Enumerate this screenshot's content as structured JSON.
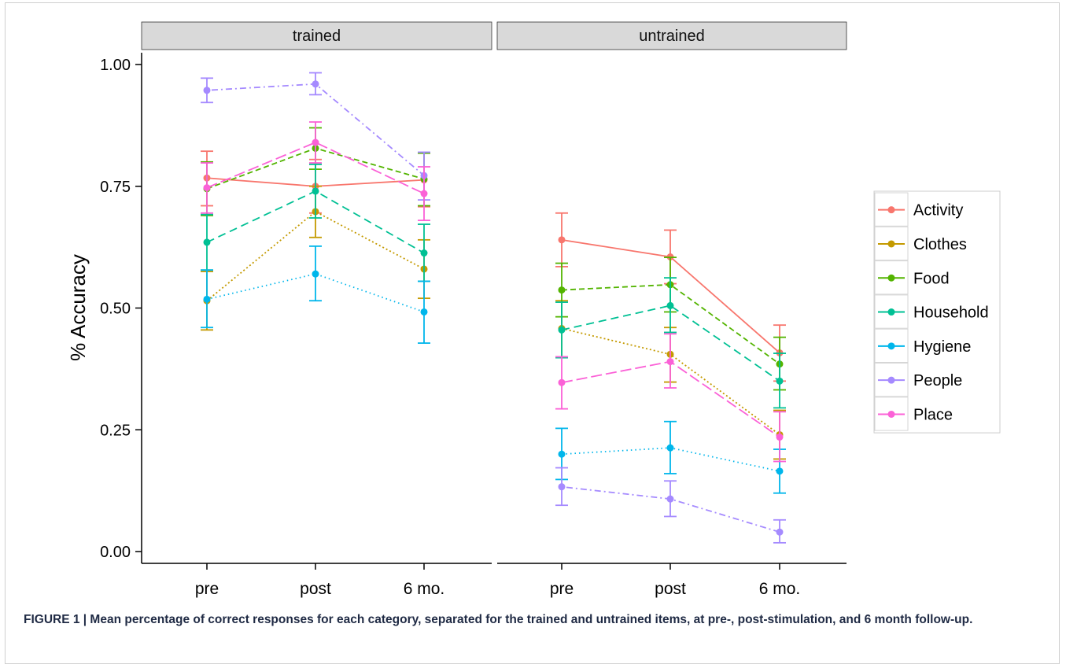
{
  "chart_data": {
    "type": "line",
    "facets": [
      "trained",
      "untrained"
    ],
    "x": [
      "pre",
      "post",
      "6 mo."
    ],
    "ylabel": "% Accuracy",
    "xlabel": "",
    "ylim": [
      0.0,
      1.0
    ],
    "yticks": [
      "0.00",
      "0.25",
      "0.50",
      "0.75",
      "1.00"
    ],
    "grid": false,
    "legend": "right",
    "series": [
      {
        "name": "Activity",
        "color": "#f8766d",
        "dash": "solid",
        "trained": {
          "mean": [
            0.767,
            0.75,
            0.763
          ],
          "lo": [
            0.71,
            0.695,
            0.708
          ],
          "hi": [
            0.822,
            0.805,
            0.818
          ]
        },
        "untrained": {
          "mean": [
            0.64,
            0.605,
            0.408
          ],
          "lo": [
            0.585,
            0.55,
            0.35
          ],
          "hi": [
            0.695,
            0.66,
            0.465
          ]
        }
      },
      {
        "name": "Clothes",
        "color": "#c49a00",
        "dash": "dotted",
        "trained": {
          "mean": [
            0.515,
            0.698,
            0.58
          ],
          "lo": [
            0.455,
            0.645,
            0.52
          ],
          "hi": [
            0.575,
            0.75,
            0.64
          ]
        },
        "untrained": {
          "mean": [
            0.458,
            0.405,
            0.24
          ],
          "lo": [
            0.4,
            0.348,
            0.19
          ],
          "hi": [
            0.515,
            0.46,
            0.29
          ]
        }
      },
      {
        "name": "Food",
        "color": "#53b400",
        "dash": "dashed",
        "trained": {
          "mean": [
            0.745,
            0.828,
            0.765
          ],
          "lo": [
            0.69,
            0.785,
            0.71
          ],
          "hi": [
            0.8,
            0.87,
            0.818
          ]
        },
        "untrained": {
          "mean": [
            0.537,
            0.548,
            0.385
          ],
          "lo": [
            0.482,
            0.492,
            0.332
          ],
          "hi": [
            0.592,
            0.604,
            0.44
          ]
        }
      },
      {
        "name": "Household",
        "color": "#00c094",
        "dash": "longdash",
        "trained": {
          "mean": [
            0.635,
            0.74,
            0.613
          ],
          "lo": [
            0.578,
            0.685,
            0.555
          ],
          "hi": [
            0.692,
            0.795,
            0.672
          ]
        },
        "untrained": {
          "mean": [
            0.455,
            0.505,
            0.35
          ],
          "lo": [
            0.398,
            0.45,
            0.295
          ],
          "hi": [
            0.512,
            0.562,
            0.407
          ]
        }
      },
      {
        "name": "Hygiene",
        "color": "#00b6eb",
        "dash": "dotdense",
        "trained": {
          "mean": [
            0.518,
            0.57,
            0.492
          ],
          "lo": [
            0.46,
            0.515,
            0.428
          ],
          "hi": [
            0.578,
            0.627,
            0.555
          ]
        },
        "untrained": {
          "mean": [
            0.2,
            0.213,
            0.165
          ],
          "lo": [
            0.148,
            0.16,
            0.12
          ],
          "hi": [
            0.253,
            0.267,
            0.21
          ]
        }
      },
      {
        "name": "People",
        "color": "#a58aff",
        "dash": "dotdash",
        "trained": {
          "mean": [
            0.947,
            0.96,
            0.772
          ],
          "lo": [
            0.922,
            0.938,
            0.722
          ],
          "hi": [
            0.972,
            0.983,
            0.82
          ]
        },
        "untrained": {
          "mean": [
            0.133,
            0.108,
            0.04
          ],
          "lo": [
            0.095,
            0.072,
            0.018
          ],
          "hi": [
            0.172,
            0.145,
            0.065
          ]
        }
      },
      {
        "name": "Place",
        "color": "#fb61d7",
        "dash": "longdash2",
        "trained": {
          "mean": [
            0.747,
            0.84,
            0.735
          ],
          "lo": [
            0.695,
            0.798,
            0.68
          ],
          "hi": [
            0.798,
            0.882,
            0.79
          ]
        },
        "untrained": {
          "mean": [
            0.347,
            0.39,
            0.235
          ],
          "lo": [
            0.293,
            0.336,
            0.185
          ],
          "hi": [
            0.4,
            0.447,
            0.287
          ]
        }
      }
    ]
  },
  "caption": {
    "lead": "FIGURE 1 | Mean percentage of correct responses for each category, separated for the trained and untrained items, at pre-, post-stimulation, and 6 month follow-up."
  }
}
